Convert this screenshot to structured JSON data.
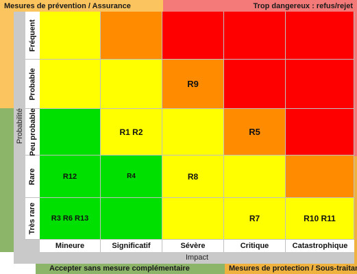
{
  "zones": {
    "top_left": "Mesures de prévention / Assurance",
    "top_right": "Trop dangereux : refus/rejet",
    "bottom_left": "Accepter sans mesure complémentaire",
    "bottom_right": "Mesures de protection / Sous-traitance"
  },
  "axes": {
    "y_label": "Probabilité",
    "x_label": "Impact"
  },
  "rows": [
    "Fréquent",
    "Probable",
    "Peu probable",
    "Rare",
    "Très rare"
  ],
  "columns": [
    "Mineure",
    "Significatif",
    "Sévère",
    "Critique",
    "Catastrophique"
  ],
  "colors": {
    "yellow": "#ffff00",
    "orange": "#ff8c00",
    "red": "#ff0000",
    "green": "#00e000",
    "zone_orange": "#fbc45e",
    "zone_red": "#f47a7a",
    "zone_green": "#8db56a",
    "zone_gold": "#f0b23f"
  },
  "grid": [
    [
      {
        "color": "yellow",
        "label": ""
      },
      {
        "color": "orange",
        "label": ""
      },
      {
        "color": "red",
        "label": ""
      },
      {
        "color": "red",
        "label": ""
      },
      {
        "color": "red",
        "label": ""
      }
    ],
    [
      {
        "color": "yellow",
        "label": ""
      },
      {
        "color": "yellow",
        "label": ""
      },
      {
        "color": "orange",
        "label": "R9"
      },
      {
        "color": "red",
        "label": ""
      },
      {
        "color": "red",
        "label": ""
      }
    ],
    [
      {
        "color": "green",
        "label": ""
      },
      {
        "color": "yellow",
        "label": "R1 R2"
      },
      {
        "color": "yellow",
        "label": ""
      },
      {
        "color": "orange",
        "label": "R5"
      },
      {
        "color": "red",
        "label": ""
      }
    ],
    [
      {
        "color": "green",
        "label": "R12"
      },
      {
        "color": "green",
        "label": "R4"
      },
      {
        "color": "yellow",
        "label": "R8"
      },
      {
        "color": "yellow",
        "label": ""
      },
      {
        "color": "orange",
        "label": ""
      }
    ],
    [
      {
        "color": "green",
        "label": "R3 R6 R13"
      },
      {
        "color": "green",
        "label": ""
      },
      {
        "color": "yellow",
        "label": ""
      },
      {
        "color": "yellow",
        "label": "R7"
      },
      {
        "color": "yellow",
        "label": "R10 R11"
      }
    ]
  ]
}
